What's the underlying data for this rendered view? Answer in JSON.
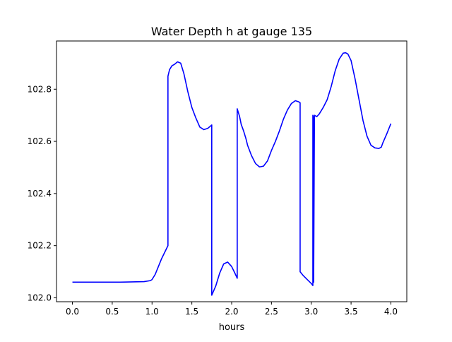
{
  "chart_data": {
    "type": "line",
    "title": "Water Depth h at gauge 135",
    "xlabel": "hours",
    "ylabel": "",
    "xlim": [
      -0.2,
      4.2
    ],
    "ylim": [
      101.985,
      102.985
    ],
    "xticks": [
      0.0,
      0.5,
      1.0,
      1.5,
      2.0,
      2.5,
      3.0,
      3.5,
      4.0
    ],
    "xtick_labels": [
      "0.0",
      "0.5",
      "1.0",
      "1.5",
      "2.0",
      "2.5",
      "3.0",
      "3.5",
      "4.0"
    ],
    "yticks": [
      102.0,
      102.2,
      102.4,
      102.6,
      102.8
    ],
    "ytick_labels": [
      "102.0",
      "102.2",
      "102.4",
      "102.6",
      "102.8"
    ],
    "grid": false,
    "series": [
      {
        "color": "#0000ff",
        "x": [
          0.0,
          0.3,
          0.6,
          0.9,
          0.98,
          1.0,
          1.04,
          1.08,
          1.12,
          1.16,
          1.2,
          1.2,
          1.22,
          1.25,
          1.28,
          1.32,
          1.36,
          1.4,
          1.45,
          1.5,
          1.55,
          1.6,
          1.65,
          1.7,
          1.74,
          1.75,
          1.75,
          1.8,
          1.85,
          1.9,
          1.95,
          2.0,
          2.04,
          2.07,
          2.07,
          2.1,
          2.12,
          2.15,
          2.18,
          2.2,
          2.25,
          2.3,
          2.35,
          2.4,
          2.45,
          2.5,
          2.55,
          2.6,
          2.65,
          2.7,
          2.75,
          2.8,
          2.84,
          2.86,
          2.86,
          2.9,
          2.95,
          3.0,
          3.02,
          3.02,
          3.03,
          3.03,
          3.04,
          3.07,
          3.1,
          3.15,
          3.2,
          3.25,
          3.3,
          3.35,
          3.4,
          3.43,
          3.46,
          3.5,
          3.55,
          3.6,
          3.65,
          3.7,
          3.75,
          3.8,
          3.85,
          3.88,
          3.9,
          3.95,
          4.0
        ],
        "y": [
          102.06,
          102.06,
          102.06,
          102.062,
          102.066,
          102.07,
          102.09,
          102.12,
          102.15,
          102.175,
          102.2,
          102.85,
          102.875,
          102.89,
          102.895,
          102.905,
          102.9,
          102.86,
          102.79,
          102.73,
          102.69,
          102.655,
          102.645,
          102.65,
          102.66,
          102.663,
          102.01,
          102.045,
          102.095,
          102.13,
          102.137,
          102.12,
          102.095,
          102.075,
          102.725,
          102.695,
          102.665,
          102.64,
          102.61,
          102.585,
          102.545,
          102.515,
          102.502,
          102.505,
          102.525,
          102.565,
          102.6,
          102.64,
          102.685,
          102.72,
          102.745,
          102.756,
          102.752,
          102.748,
          102.1,
          102.085,
          102.07,
          102.055,
          102.047,
          102.7,
          102.69,
          102.06,
          102.7,
          102.695,
          102.705,
          102.73,
          102.76,
          102.81,
          102.87,
          102.915,
          102.938,
          102.94,
          102.935,
          102.91,
          102.84,
          102.76,
          102.68,
          102.62,
          102.585,
          102.575,
          102.573,
          102.578,
          102.595,
          102.63,
          102.668
        ]
      }
    ]
  }
}
